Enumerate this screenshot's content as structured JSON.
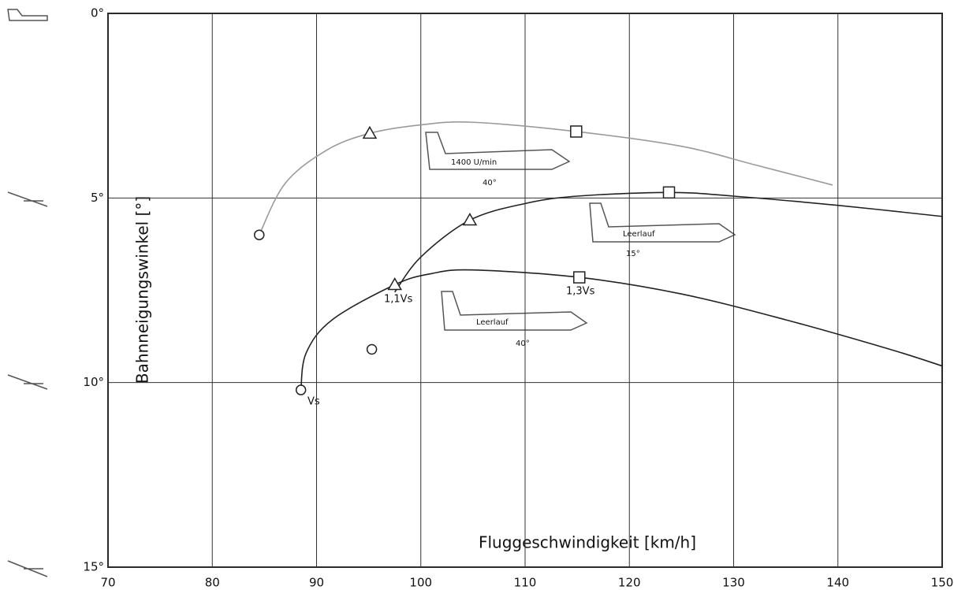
{
  "chart_data": {
    "type": "line",
    "xlabel": "Fluggeschwindigkeit [km/h]",
    "ylabel": "Bahnneigungswinkel [°]",
    "xlim": [
      70,
      150
    ],
    "xticks": [
      70,
      80,
      90,
      100,
      110,
      120,
      130,
      140,
      150
    ],
    "ylim": [
      0,
      15
    ],
    "y_inverted": true,
    "yticks": [
      {
        "value": 0,
        "label": "0°"
      },
      {
        "value": 5,
        "label": "5°"
      },
      {
        "value": 10,
        "label": "10°"
      },
      {
        "value": 15,
        "label": "15°"
      }
    ],
    "grid": true,
    "series": [
      {
        "color": "#9a9a9a",
        "x": [
          84.5,
          87,
          91,
          95.1,
          100,
          105,
          114.9,
          125,
          132,
          139.5
        ],
        "values": [
          6.0,
          4.6,
          3.7,
          3.25,
          3.02,
          2.95,
          3.2,
          3.6,
          4.1,
          4.65
        ],
        "markers": [
          "circle",
          null,
          null,
          "triangle",
          null,
          null,
          "square",
          null,
          null,
          null
        ]
      },
      {
        "color": "#222222",
        "x": [
          95.3,
          96.5,
          97.5,
          100,
          104.7,
          110,
          115,
          123.8,
          130,
          140,
          150
        ],
        "values": [
          9.1,
          null,
          7.55,
          6.6,
          5.6,
          5.15,
          4.95,
          4.85,
          4.95,
          5.2,
          5.5
        ],
        "markers": [
          "circle",
          null,
          null,
          null,
          "triangle",
          null,
          null,
          "square",
          null,
          null,
          null
        ]
      },
      {
        "color": "#222222",
        "x": [
          88.5,
          89,
          91.5,
          97.5,
          101,
          105,
          115.2,
          125,
          135,
          145,
          150
        ],
        "values": [
          10.2,
          9.2,
          8.3,
          7.35,
          7.05,
          6.95,
          7.15,
          7.6,
          8.3,
          9.1,
          9.55
        ],
        "markers": [
          "circle",
          null,
          null,
          "triangle",
          null,
          null,
          "square",
          null,
          null,
          null,
          null
        ]
      }
    ],
    "annotations": [
      "Vs",
      "1,1Vs",
      "1,3Vs",
      "1400 U/min",
      "Leerlauf",
      "Leerlauf",
      "40°",
      "15°",
      "40°"
    ]
  }
}
